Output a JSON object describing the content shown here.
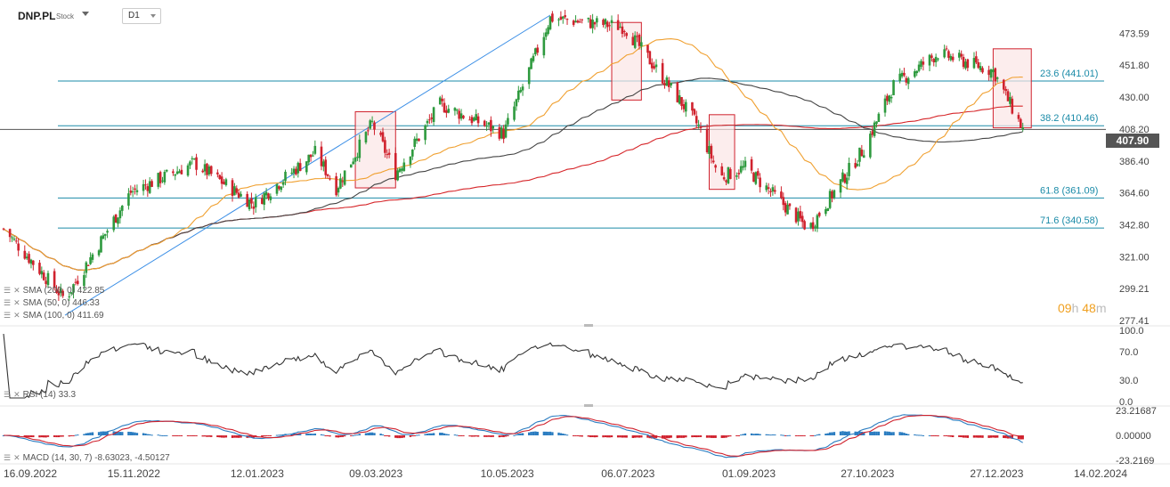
{
  "header": {
    "symbol": "DNP.PL",
    "type": "Stock",
    "timeframe": "D1"
  },
  "timer": {
    "value1": "09",
    "unit1": "h",
    "value2": "48",
    "unit2": "m"
  },
  "last_price": "407.90",
  "indicators": {
    "sma200": "SMA (200, 0) 422.85",
    "sma50": "SMA (50, 0) 446.33",
    "sma100": "SMA (100, 0) 411.69",
    "rsi": "RSI (14) 33.3",
    "macd": "MACD (14, 30, 7) -8.63023, -4.50127"
  },
  "colors": {
    "up": "#2e9a3e",
    "down": "#d0222e",
    "sma200": "#d6262a",
    "sma50": "#f0a030",
    "sma100": "#444444",
    "fib": "#1b8ba8",
    "trend": "#3a8ee6",
    "box_border": "#d0222e",
    "box_fill": "#fbe5e6",
    "macd_pos": "#2a7cc0",
    "macd_neg": "#d0222e",
    "macd_line": "#2a7cc0",
    "signal_line": "#d0222e"
  },
  "chart_data": [
    {
      "type": "candlestick",
      "ylim": [
        277.41,
        486
      ],
      "y_ticks": [
        "473.59",
        "451.80",
        "430.00",
        "408.20",
        "386.40",
        "364.60",
        "342.80",
        "321.00",
        "299.21",
        "277.41"
      ],
      "x_ticks": [
        "16.09.2022",
        "15.11.2022",
        "12.01.2023",
        "09.03.2023",
        "10.05.2023",
        "06.07.2023",
        "01.09.2023",
        "27.10.2023",
        "27.12.2023",
        "14.02.2024"
      ],
      "close_series_key_points": [
        {
          "date": "16.09.2022",
          "value": 340
        },
        {
          "date": "15.10.2022",
          "value": 292
        },
        {
          "date": "15.11.2022",
          "value": 365
        },
        {
          "date": "15.12.2022",
          "value": 385
        },
        {
          "date": "12.01.2023",
          "value": 357
        },
        {
          "date": "10.02.2023",
          "value": 392
        },
        {
          "date": "20.02.2023",
          "value": 368
        },
        {
          "date": "09.03.2023",
          "value": 412
        },
        {
          "date": "20.03.2023",
          "value": 378
        },
        {
          "date": "10.04.2023",
          "value": 425
        },
        {
          "date": "10.05.2023",
          "value": 405
        },
        {
          "date": "01.06.2023",
          "value": 484
        },
        {
          "date": "06.07.2023",
          "value": 478
        },
        {
          "date": "01.08.2023",
          "value": 428
        },
        {
          "date": "10.08.2023",
          "value": 410
        },
        {
          "date": "20.08.2023",
          "value": 375
        },
        {
          "date": "01.09.2023",
          "value": 382
        },
        {
          "date": "01.10.2023",
          "value": 340
        },
        {
          "date": "27.10.2023",
          "value": 395
        },
        {
          "date": "10.11.2023",
          "value": 438
        },
        {
          "date": "01.12.2023",
          "value": 460
        },
        {
          "date": "27.12.2023",
          "value": 448
        },
        {
          "date": "10.01.2024",
          "value": 408
        }
      ],
      "fibonacci": [
        {
          "label": "23.6 (441.01)",
          "value": 441.01
        },
        {
          "label": "38.2 (410.46)",
          "value": 410.46
        },
        {
          "label": "61.8 (361.09)",
          "value": 361.09
        },
        {
          "label": "71.6 (340.58)",
          "value": 340.58
        }
      ],
      "moving_averages": [
        {
          "name": "SMA (200, 0)",
          "last": 422.85
        },
        {
          "name": "SMA (50, 0)",
          "last": 446.33
        },
        {
          "name": "SMA (100, 0)",
          "last": 411.69
        }
      ]
    },
    {
      "type": "line",
      "name": "RSI (14)",
      "ylim": [
        0,
        100
      ],
      "y_ticks": [
        "100.0",
        "70.0",
        "30.0",
        "0.0"
      ],
      "last": 33.3
    },
    {
      "type": "bar",
      "name": "MACD (14, 30, 7)",
      "y_ticks": [
        "23.21687",
        "0.00000",
        "-23.2169"
      ],
      "last_values": [
        -8.63023,
        -4.50127
      ]
    }
  ]
}
